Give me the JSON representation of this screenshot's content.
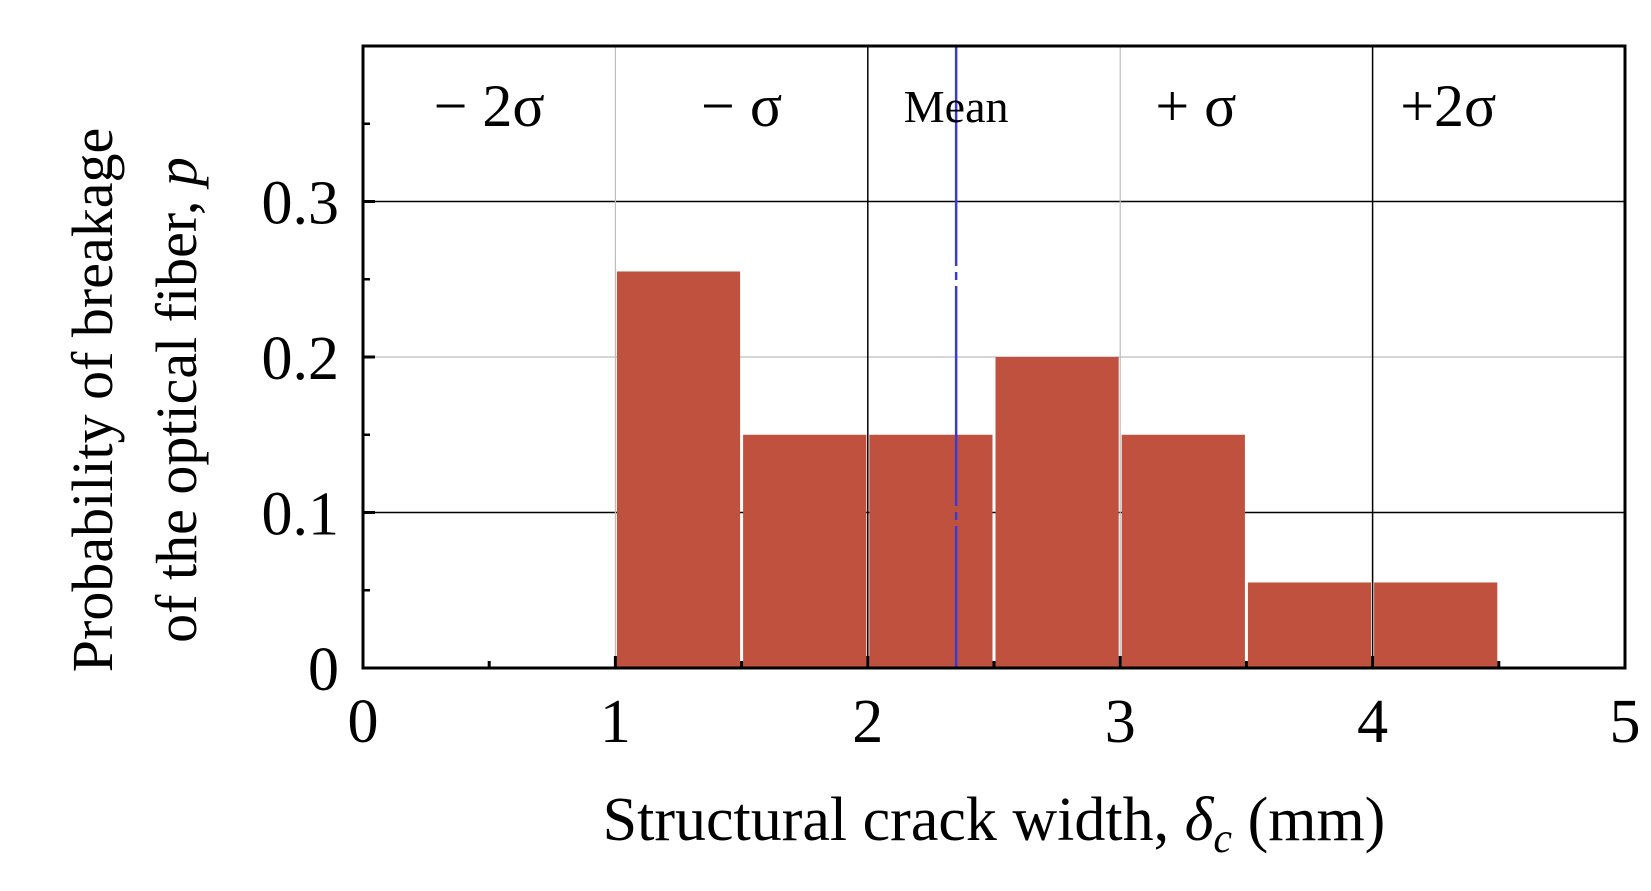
{
  "chart_data": {
    "type": "bar",
    "xlabel": {
      "prefix": "Structural crack width, ",
      "symbol": "δ",
      "subscript": "c",
      "suffix": " (mm)"
    },
    "ylabel": {
      "line1": "Probability of breakage",
      "line2_prefix": "of the optical fiber, ",
      "line2_symbol": "p"
    },
    "xlim": [
      0,
      5
    ],
    "ylim": [
      0,
      0.4
    ],
    "xticks": [
      "0",
      "1",
      "2",
      "3",
      "4",
      "5"
    ],
    "yticks": [
      "0",
      "0.1",
      "0.2",
      "0.3"
    ],
    "bins": [
      {
        "x0": 1.0,
        "x1": 1.5,
        "value": 0.255
      },
      {
        "x0": 1.5,
        "x1": 2.0,
        "value": 0.15
      },
      {
        "x0": 2.0,
        "x1": 2.5,
        "value": 0.15
      },
      {
        "x0": 2.5,
        "x1": 3.0,
        "value": 0.2
      },
      {
        "x0": 3.0,
        "x1": 3.5,
        "value": 0.15
      },
      {
        "x0": 3.5,
        "x1": 4.0,
        "value": 0.055
      },
      {
        "x0": 4.0,
        "x1": 4.5,
        "value": 0.055
      }
    ],
    "mean": 2.35,
    "region_labels": [
      {
        "text": "− 2σ",
        "at": 0.5
      },
      {
        "text": "− σ",
        "at": 1.5
      },
      {
        "text": "Mean",
        "at": 2.35
      },
      {
        "text": "+ σ",
        "at": 3.3
      },
      {
        "text": "+2σ",
        "at": 4.3
      }
    ],
    "colors": {
      "bar": "#c0513e",
      "mean_line": "#3a3ad6",
      "grid_dark": "#000000",
      "grid_light": "#bdbdbd"
    },
    "grid": true
  }
}
